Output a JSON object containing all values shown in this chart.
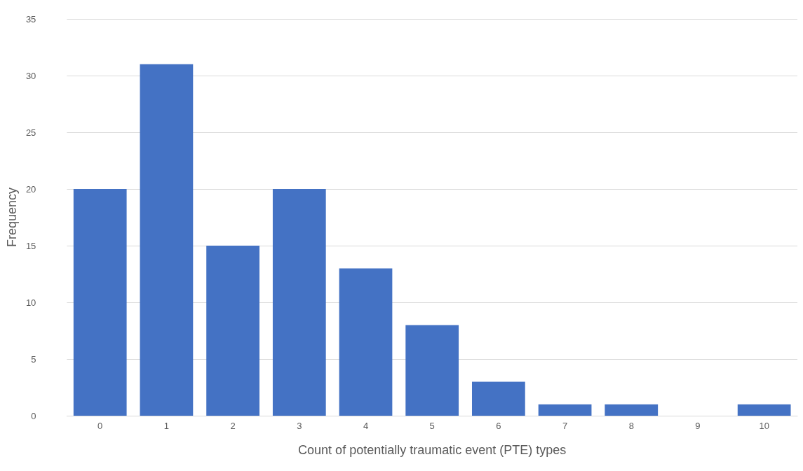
{
  "chart_data": {
    "type": "bar",
    "xlabel": "Count of potentially traumatic event (PTE) types",
    "ylabel": "Frequency",
    "categories": [
      "0",
      "1",
      "2",
      "3",
      "4",
      "5",
      "6",
      "7",
      "8",
      "9",
      "10"
    ],
    "values": [
      20,
      31,
      15,
      20,
      13,
      8,
      3,
      1,
      1,
      0,
      1
    ],
    "color": "#4472c4",
    "ylim": [
      0,
      35
    ],
    "yticks": [
      0,
      5,
      10,
      15,
      20,
      25,
      30,
      35
    ],
    "grid": "y"
  }
}
